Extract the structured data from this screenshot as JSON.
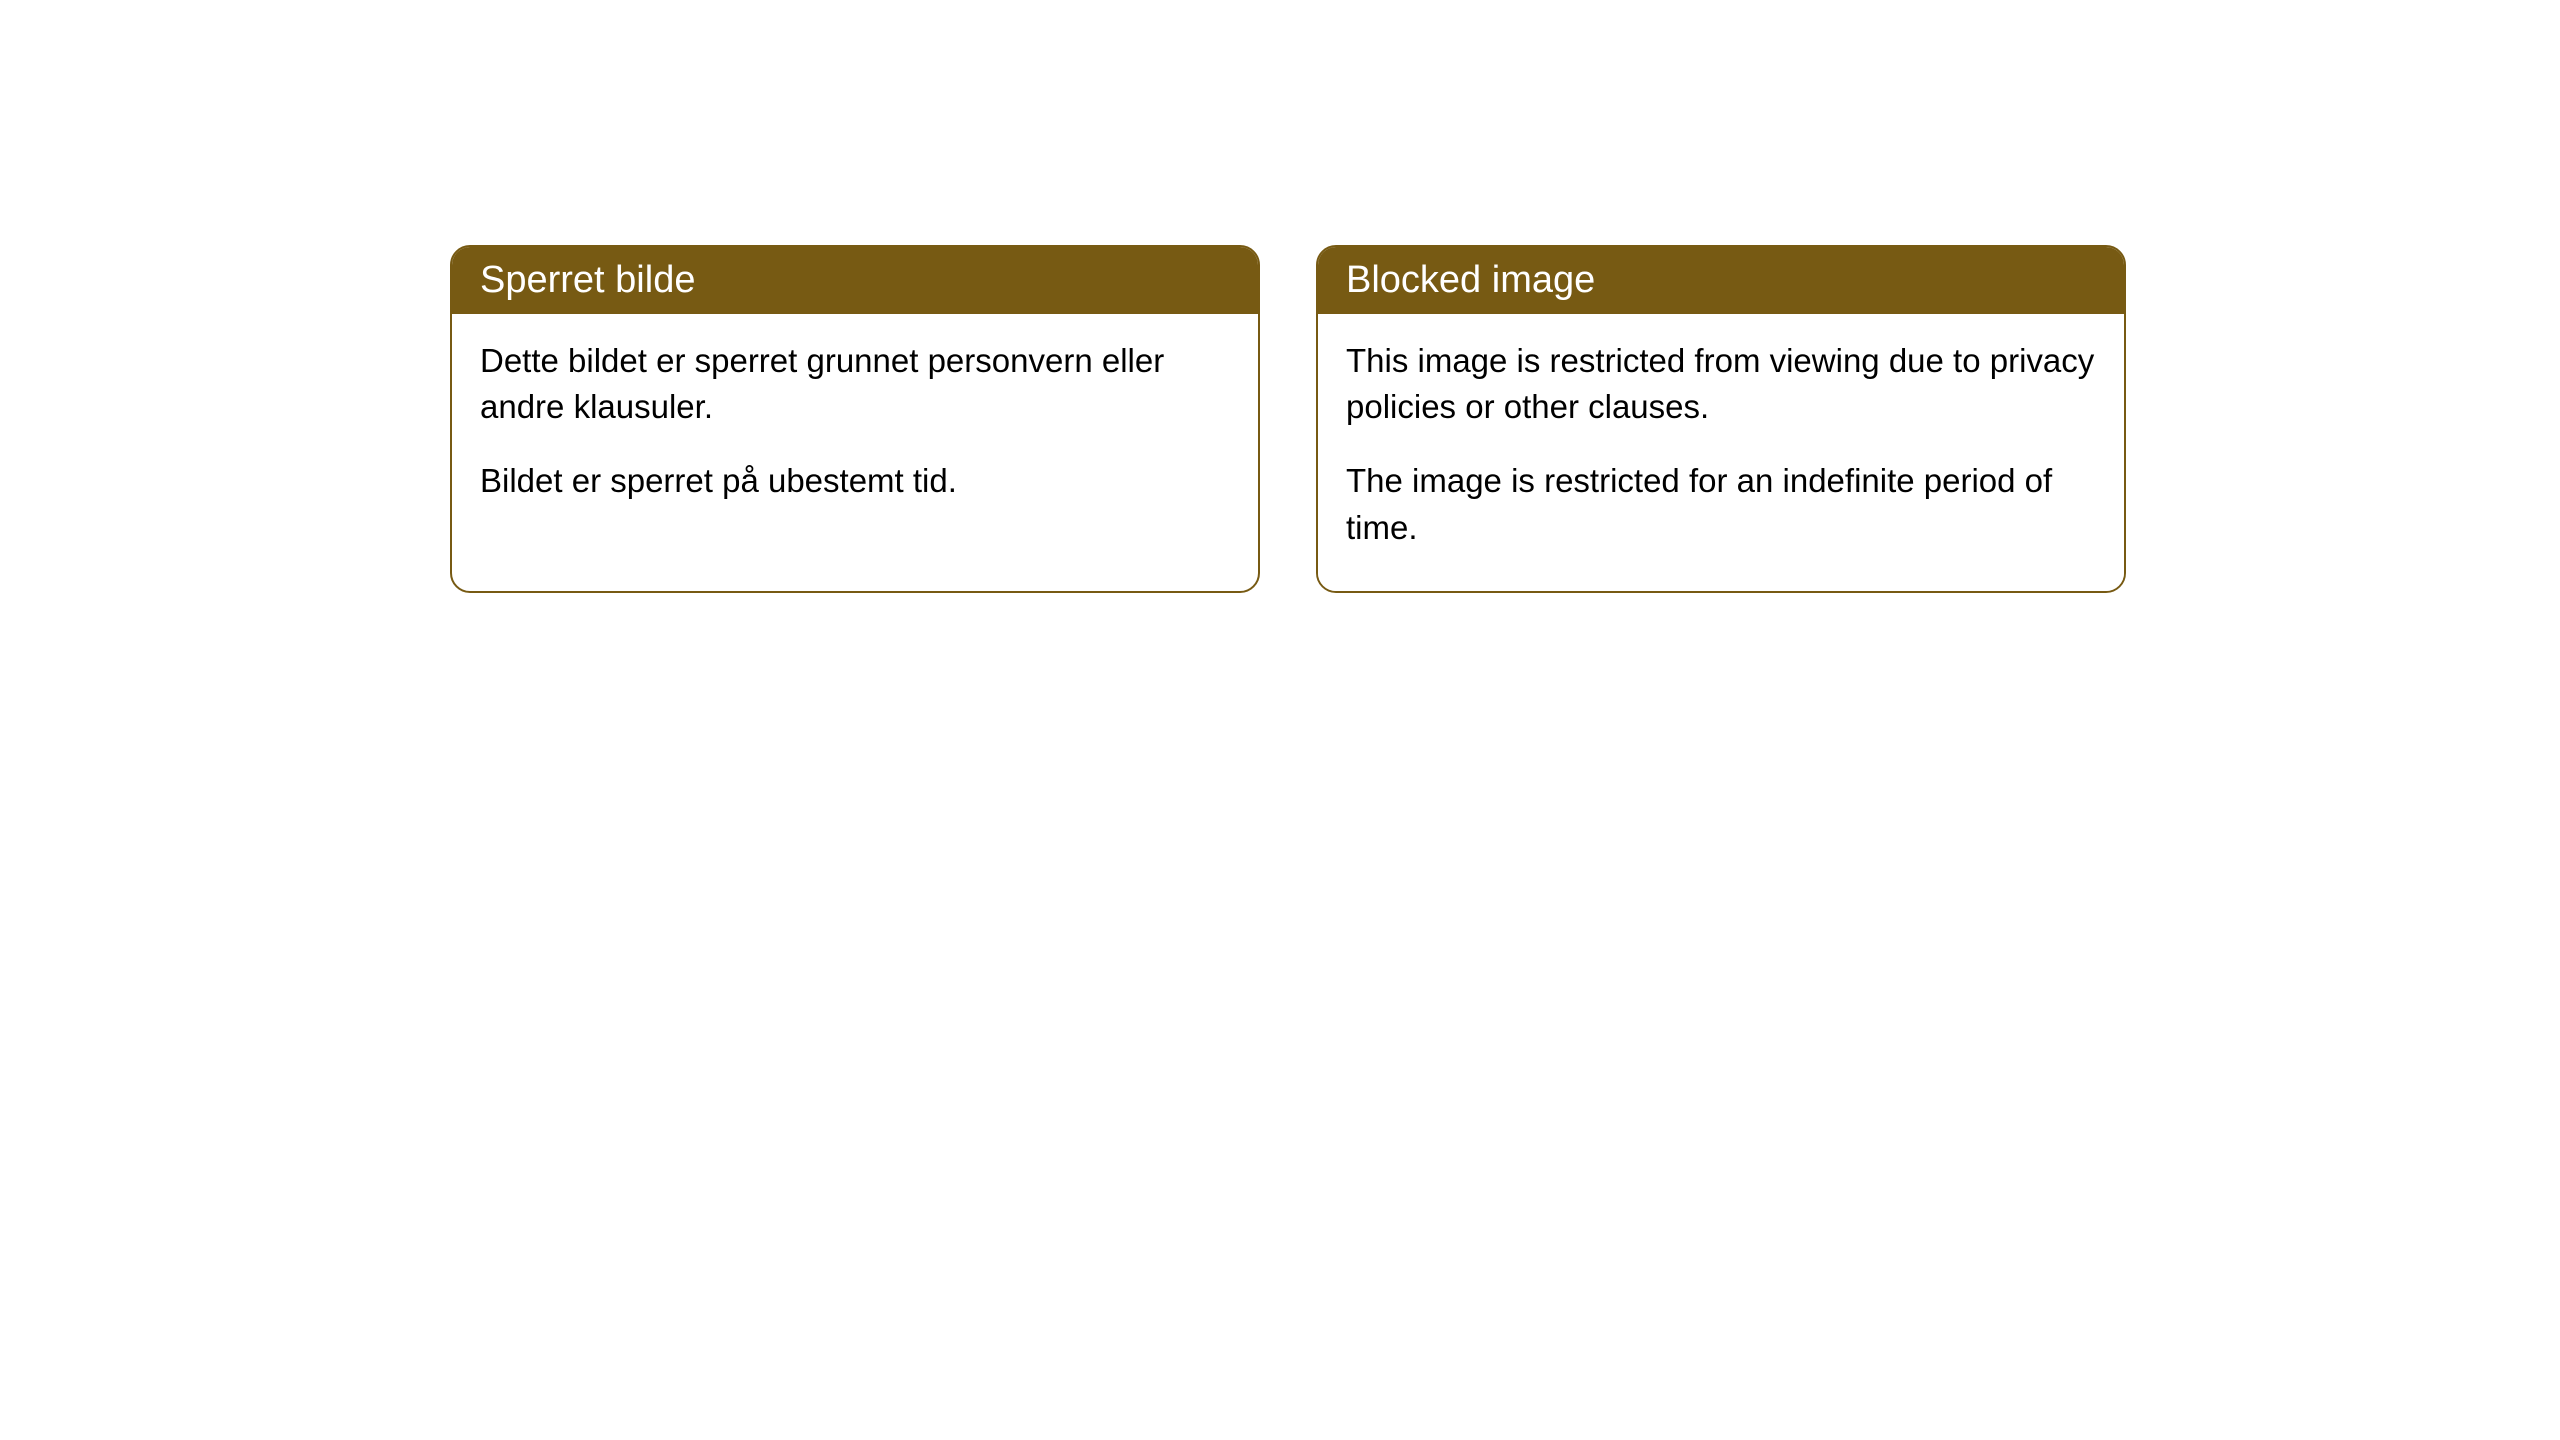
{
  "cards": [
    {
      "title": "Sperret bilde",
      "paragraph1": "Dette bildet er sperret grunnet personvern eller andre klausuler.",
      "paragraph2": "Bildet er sperret på ubestemt tid."
    },
    {
      "title": "Blocked image",
      "paragraph1": "This image is restricted from viewing due to privacy policies or other clauses.",
      "paragraph2": "The image is restricted for an indefinite period of time."
    }
  ],
  "style": {
    "header_bg_color": "#775a13",
    "header_text_color": "#ffffff",
    "border_color": "#775a13",
    "body_bg_color": "#ffffff",
    "body_text_color": "#000000",
    "border_radius": 20,
    "title_fontsize": 38,
    "body_fontsize": 33
  }
}
